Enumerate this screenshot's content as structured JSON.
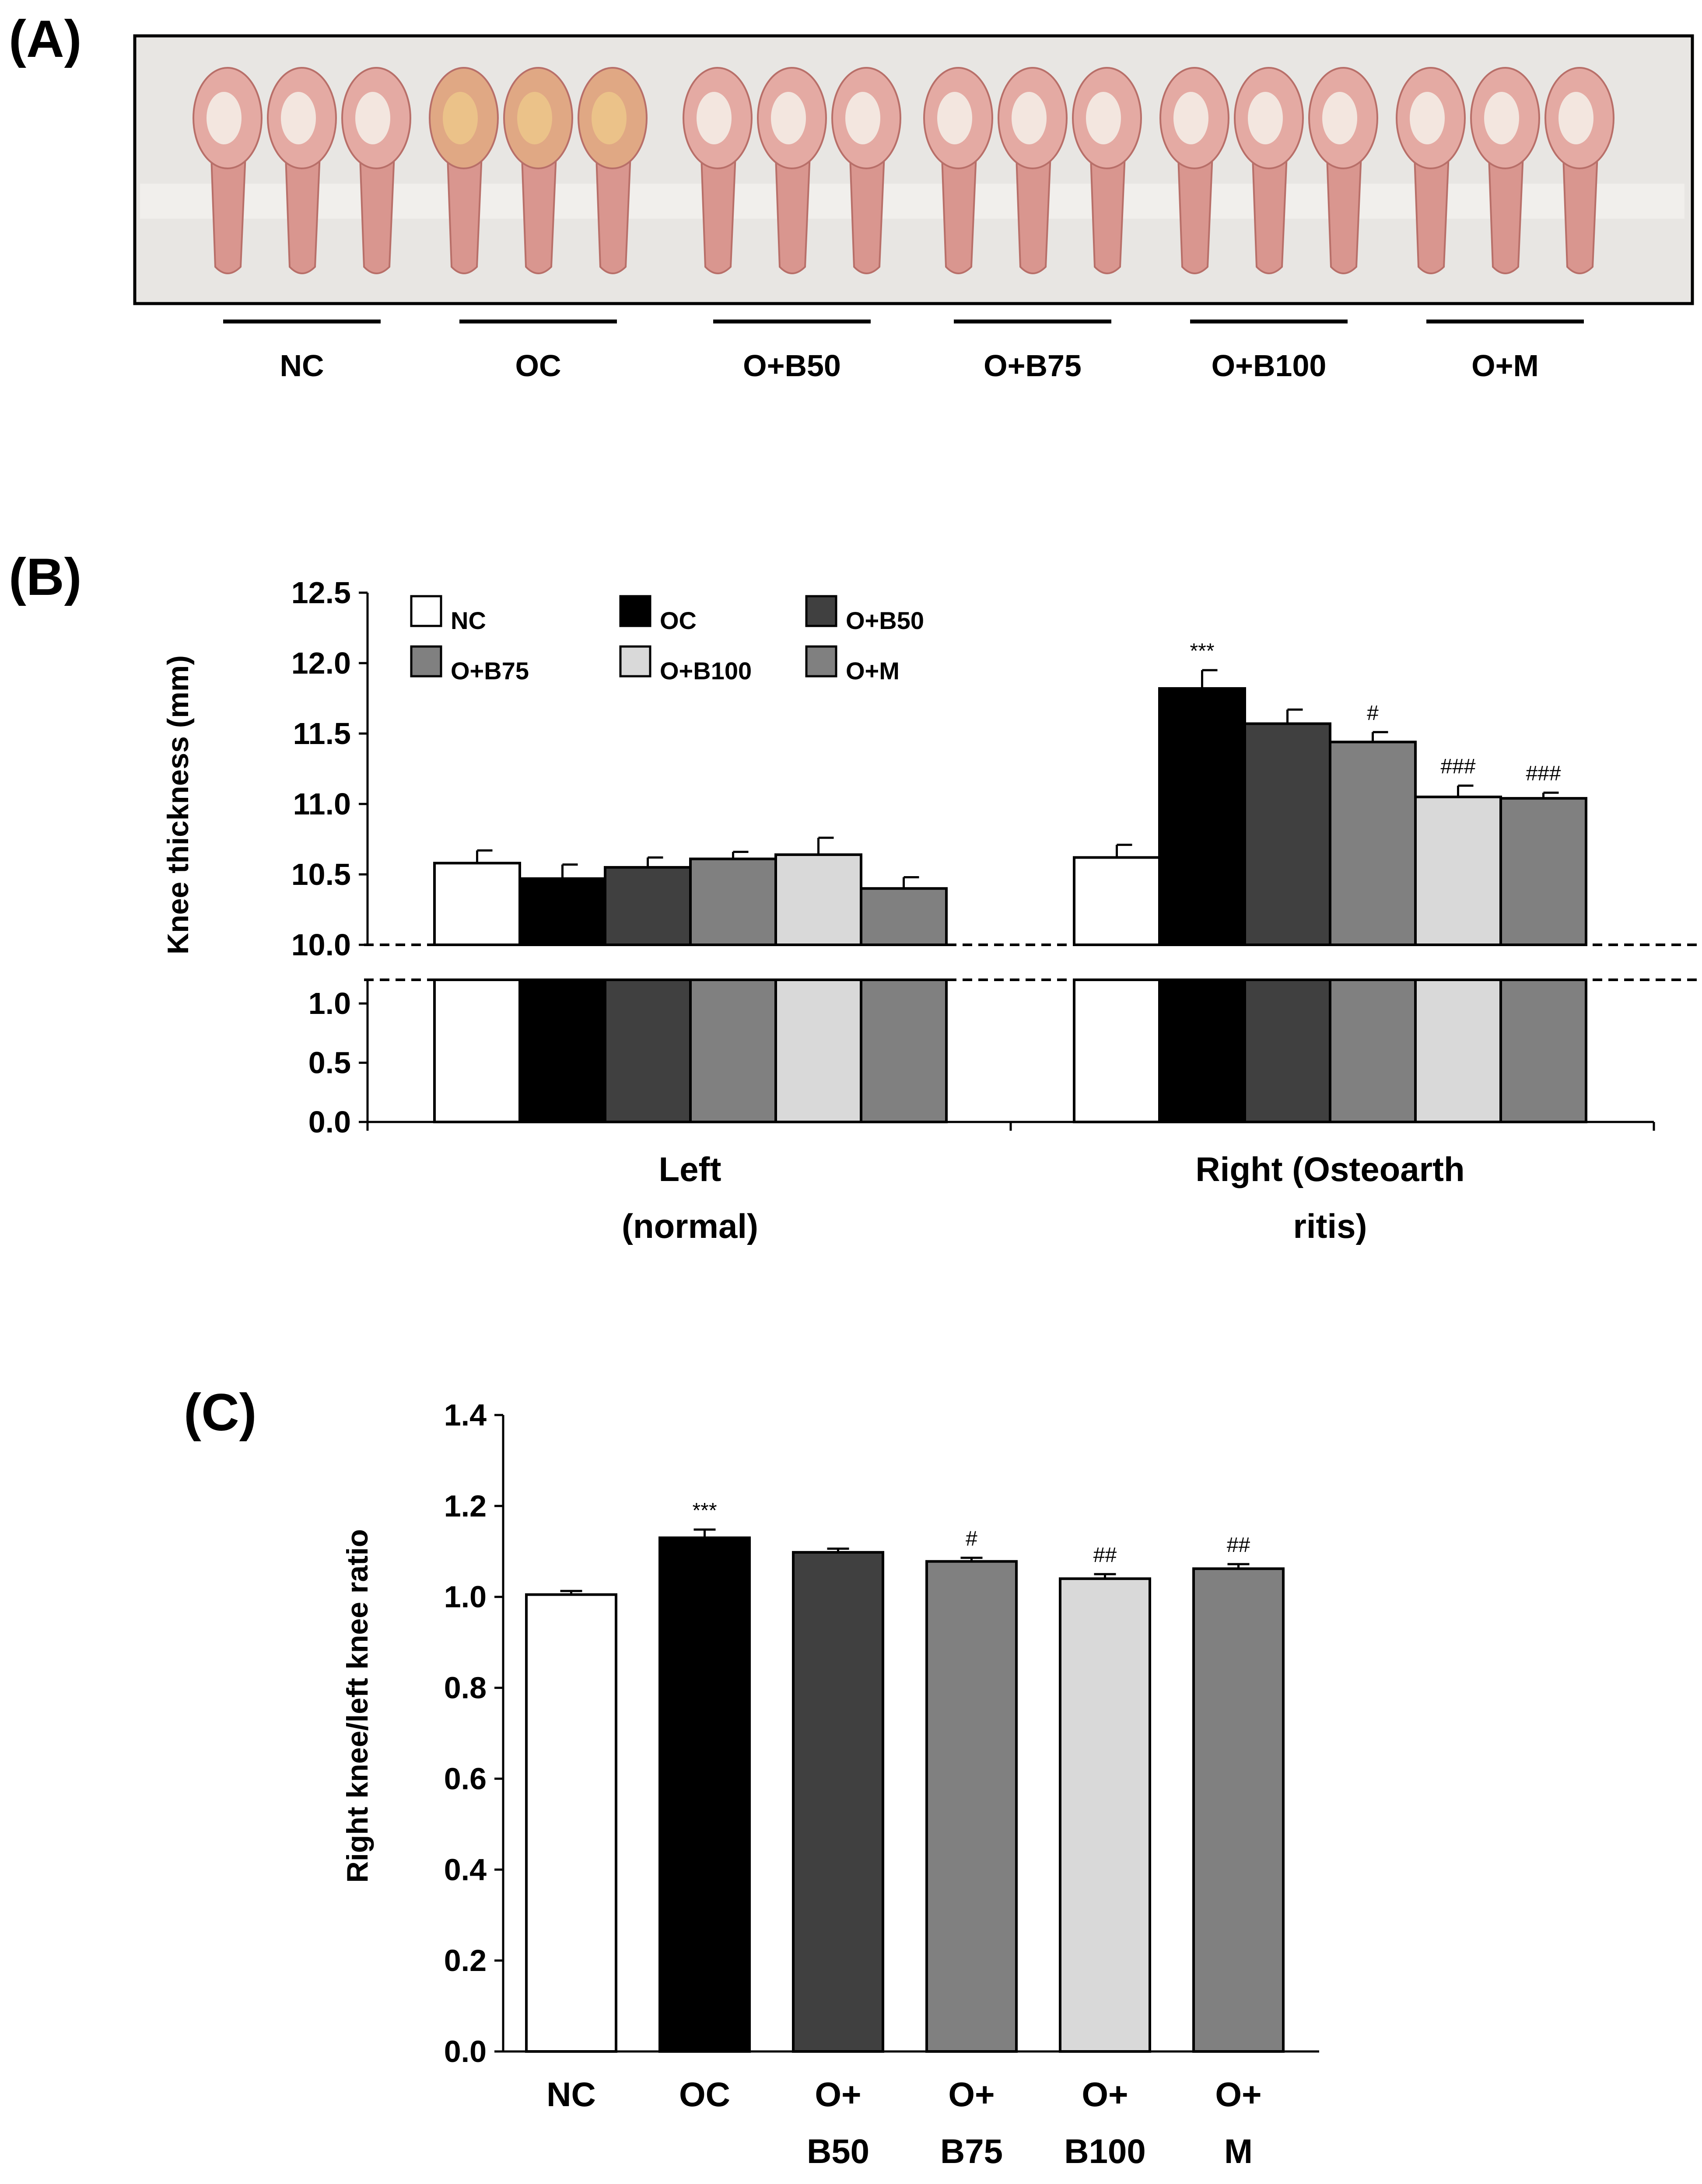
{
  "panels": {
    "a": {
      "label": "(A)",
      "photo_description": "Photograph of excised knee joints from each group",
      "groups": [
        "NC",
        "OC",
        "O+B50",
        "O+B75",
        "O+B100",
        "O+M"
      ]
    },
    "b": {
      "label": "(B)"
    },
    "c": {
      "label": "(C)"
    }
  },
  "colors": {
    "NC": "#ffffff",
    "OC": "#000000",
    "O+B50": "#404040",
    "O+B75": "#808080",
    "O+B100": "#d9d9d9",
    "O+M": "#808080",
    "tissue": "#d9968f",
    "photo_bg": "#e8e6e3"
  },
  "chart_data": [
    {
      "id": "knee-thickness",
      "type": "bar",
      "ylabel": "Knee  thickness (mm)",
      "y_ticks_upper": [
        "10.0",
        "10.5",
        "11.0",
        "11.5",
        "12.0",
        "12.5"
      ],
      "y_ticks_lower": [
        "0.0",
        "0.5",
        "1.0"
      ],
      "ylim_lower": [
        0,
        1.2
      ],
      "ylim_upper": [
        10.0,
        12.5
      ],
      "axis_break": "between 1.2 and 10.0",
      "categories": [
        {
          "line1": "Left",
          "line2": "(normal)"
        },
        {
          "line1": "Right  (Osteoarth",
          "line2": "ritis)"
        }
      ],
      "legend": [
        {
          "name": "NC",
          "label": "NC"
        },
        {
          "name": "OC",
          "label": "OC"
        },
        {
          "name": "O+B50",
          "label": "O+B50"
        },
        {
          "name": "O+B75",
          "label": "O+B75"
        },
        {
          "name": "O+B100",
          "label": "O+B100"
        },
        {
          "name": "O+M",
          "label": "O+M"
        }
      ],
      "series": [
        {
          "name": "NC",
          "values": [
            10.58,
            10.62
          ],
          "errors": [
            0.09,
            0.09
          ],
          "annotations": [
            "",
            ""
          ]
        },
        {
          "name": "OC",
          "values": [
            10.47,
            11.82
          ],
          "errors": [
            0.1,
            0.13
          ],
          "annotations": [
            "",
            "***"
          ]
        },
        {
          "name": "O+B50",
          "values": [
            10.55,
            11.57
          ],
          "errors": [
            0.07,
            0.1
          ],
          "annotations": [
            "",
            ""
          ]
        },
        {
          "name": "O+B75",
          "values": [
            10.61,
            11.44
          ],
          "errors": [
            0.05,
            0.07
          ],
          "annotations": [
            "",
            "#"
          ]
        },
        {
          "name": "O+B100",
          "values": [
            10.64,
            11.05
          ],
          "errors": [
            0.12,
            0.08
          ],
          "annotations": [
            "",
            "###"
          ]
        },
        {
          "name": "O+M",
          "values": [
            10.4,
            11.04
          ],
          "errors": [
            0.08,
            0.04
          ],
          "annotations": [
            "",
            "###"
          ]
        }
      ]
    },
    {
      "id": "knee-ratio",
      "type": "bar",
      "ylabel": "Right  knee/left  knee  ratio",
      "ylim": [
        0,
        1.4
      ],
      "y_ticks": [
        "0.0",
        "0.2",
        "0.4",
        "0.6",
        "0.8",
        "1.0",
        "1.2",
        "1.4"
      ],
      "categories": [
        {
          "name": "NC",
          "line1": "NC",
          "line2": ""
        },
        {
          "name": "OC",
          "line1": "OC",
          "line2": ""
        },
        {
          "name": "O+B50",
          "line1": "O+",
          "line2": "B50"
        },
        {
          "name": "O+B75",
          "line1": "O+",
          "line2": "B75"
        },
        {
          "name": "O+B100",
          "line1": "O+",
          "line2": "B100"
        },
        {
          "name": "O+M",
          "line1": "O+",
          "line2": "M"
        }
      ],
      "values": [
        1.005,
        1.13,
        1.098,
        1.078,
        1.04,
        1.062
      ],
      "errors": [
        0.008,
        0.018,
        0.008,
        0.008,
        0.01,
        0.01
      ],
      "annotations": [
        "",
        "***",
        "",
        "#",
        "##",
        "##"
      ]
    }
  ]
}
